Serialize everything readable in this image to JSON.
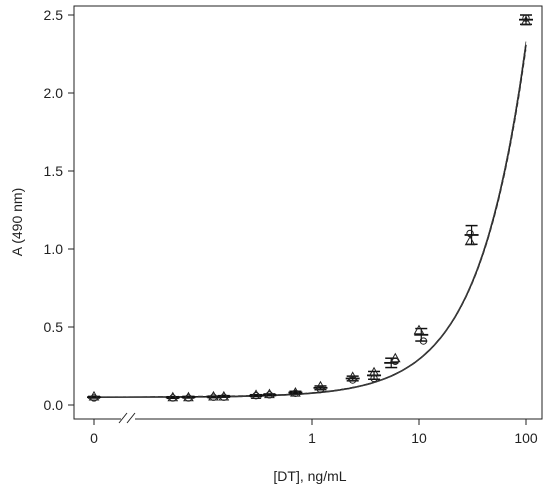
{
  "chart_data": {
    "type": "scatter",
    "title": "",
    "xlabel": "[DT], ng/mL",
    "ylabel": "A (490 nm)",
    "x_scale": "log with zero offset and axis break",
    "x_ticks": [
      {
        "value": 0,
        "label": "0"
      },
      {
        "value": 1,
        "label": "1"
      },
      {
        "value": 10,
        "label": "10"
      },
      {
        "value": 100,
        "label": "100"
      }
    ],
    "y_ticks": [
      {
        "value": 0.0,
        "label": "0.0"
      },
      {
        "value": 0.5,
        "label": "0.5"
      },
      {
        "value": 1.0,
        "label": "1.0"
      },
      {
        "value": 1.5,
        "label": "1.5"
      },
      {
        "value": 2.0,
        "label": "2.0"
      },
      {
        "value": 2.5,
        "label": "2.5"
      }
    ],
    "ylim": [
      0,
      2.5
    ],
    "xlim": [
      0,
      100
    ],
    "grid": false,
    "legend": "none",
    "series": [
      {
        "marker": "triangle",
        "x": [
          0,
          0.05,
          0.07,
          0.12,
          0.15,
          0.3,
          0.4,
          0.7,
          1.2,
          2.4,
          3.8,
          6,
          10,
          30,
          100
        ],
        "y": [
          0.055,
          0.05,
          0.05,
          0.055,
          0.055,
          0.065,
          0.07,
          0.08,
          0.12,
          0.18,
          0.21,
          0.3,
          0.48,
          1.05,
          2.46
        ]
      },
      {
        "marker": "circle",
        "x": [
          0,
          0.05,
          0.07,
          0.12,
          0.15,
          0.3,
          0.4,
          0.7,
          1.2,
          2.4,
          3.8,
          6,
          11,
          30,
          100
        ],
        "y": [
          0.045,
          0.045,
          0.045,
          0.05,
          0.05,
          0.06,
          0.065,
          0.075,
          0.1,
          0.16,
          0.17,
          0.28,
          0.41,
          1.1,
          2.48
        ]
      }
    ],
    "error_bars": {
      "x": [
        0,
        0.05,
        0.07,
        0.12,
        0.15,
        0.3,
        0.4,
        0.7,
        1.2,
        2.4,
        3.8,
        5.5,
        10.5,
        31,
        100
      ],
      "mean": [
        0.05,
        0.048,
        0.05,
        0.052,
        0.055,
        0.06,
        0.065,
        0.08,
        0.11,
        0.17,
        0.19,
        0.27,
        0.45,
        1.09,
        2.47
      ],
      "err": [
        0.005,
        0.005,
        0.005,
        0.005,
        0.005,
        0.006,
        0.006,
        0.008,
        0.012,
        0.015,
        0.025,
        0.03,
        0.04,
        0.06,
        0.03
      ]
    },
    "fit_curve": {
      "style": "solid and dashed lines",
      "baseline": 0.05,
      "coef": 0.026,
      "exponent": 0.97
    }
  }
}
